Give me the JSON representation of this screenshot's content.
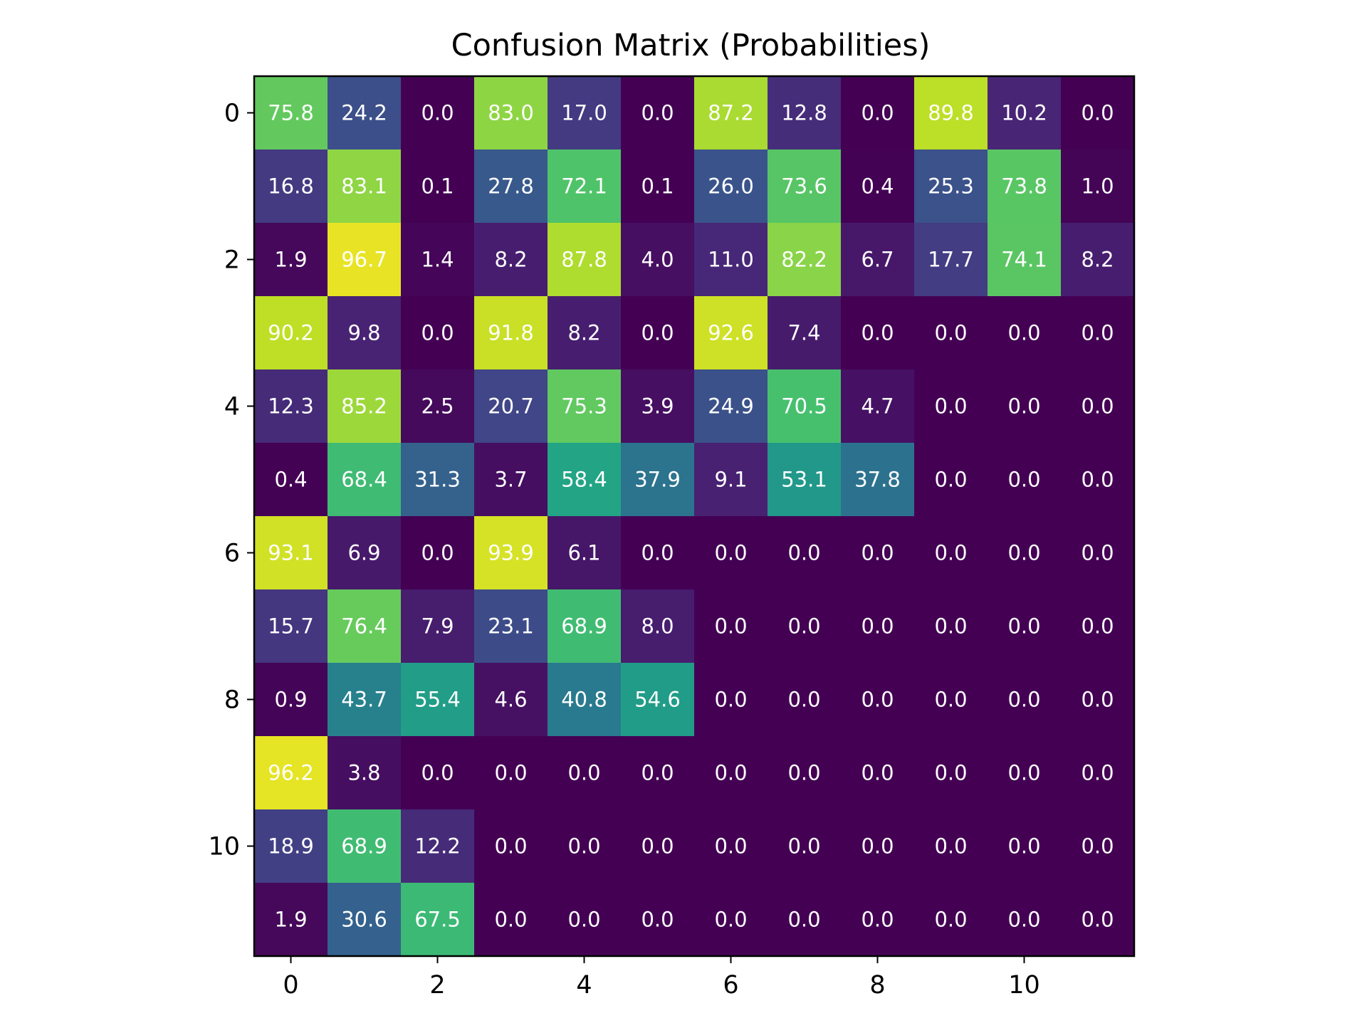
{
  "chart_data": {
    "type": "heatmap",
    "title": "Confusion Matrix (Probabilities)",
    "xlabel": "",
    "ylabel": "",
    "colormap": "viridis",
    "color_range": [
      0,
      100
    ],
    "x_ticks": [
      0,
      2,
      4,
      6,
      8,
      10
    ],
    "y_ticks": [
      0,
      2,
      4,
      6,
      8,
      10
    ],
    "rows": 12,
    "cols": 12,
    "values": [
      [
        75.8,
        24.2,
        0.0,
        83.0,
        17.0,
        0.0,
        87.2,
        12.8,
        0.0,
        89.8,
        10.2,
        0.0
      ],
      [
        16.8,
        83.1,
        0.1,
        27.8,
        72.1,
        0.1,
        26.0,
        73.6,
        0.4,
        25.3,
        73.8,
        1.0
      ],
      [
        1.9,
        96.7,
        1.4,
        8.2,
        87.8,
        4.0,
        11.0,
        82.2,
        6.7,
        17.7,
        74.1,
        8.2
      ],
      [
        90.2,
        9.8,
        0.0,
        91.8,
        8.2,
        0.0,
        92.6,
        7.4,
        0.0,
        0.0,
        0.0,
        0.0
      ],
      [
        12.3,
        85.2,
        2.5,
        20.7,
        75.3,
        3.9,
        24.9,
        70.5,
        4.7,
        0.0,
        0.0,
        0.0
      ],
      [
        0.4,
        68.4,
        31.3,
        3.7,
        58.4,
        37.9,
        9.1,
        53.1,
        37.8,
        0.0,
        0.0,
        0.0
      ],
      [
        93.1,
        6.9,
        0.0,
        93.9,
        6.1,
        0.0,
        0.0,
        0.0,
        0.0,
        0.0,
        0.0,
        0.0
      ],
      [
        15.7,
        76.4,
        7.9,
        23.1,
        68.9,
        8.0,
        0.0,
        0.0,
        0.0,
        0.0,
        0.0,
        0.0
      ],
      [
        0.9,
        43.7,
        55.4,
        4.6,
        40.8,
        54.6,
        0.0,
        0.0,
        0.0,
        0.0,
        0.0,
        0.0
      ],
      [
        96.2,
        3.8,
        0.0,
        0.0,
        0.0,
        0.0,
        0.0,
        0.0,
        0.0,
        0.0,
        0.0,
        0.0
      ],
      [
        18.9,
        68.9,
        12.2,
        0.0,
        0.0,
        0.0,
        0.0,
        0.0,
        0.0,
        0.0,
        0.0,
        0.0
      ],
      [
        1.9,
        30.6,
        67.5,
        0.0,
        0.0,
        0.0,
        0.0,
        0.0,
        0.0,
        0.0,
        0.0,
        0.0
      ]
    ]
  }
}
